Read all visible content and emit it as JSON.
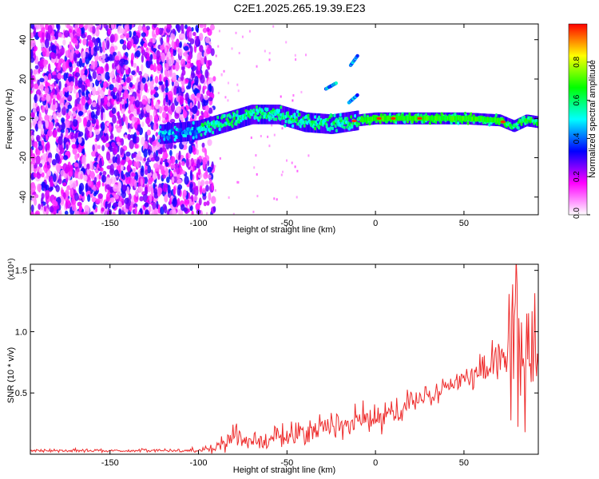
{
  "title": "C2E1.2025.265.19.39.E23",
  "chart_data": [
    {
      "type": "heatmap",
      "xlabel": "Height of straight line (km)",
      "ylabel": "Frequency (Hz)",
      "xlim": [
        -195,
        92
      ],
      "ylim": [
        -49,
        48
      ],
      "xticks": [
        -150,
        -100,
        -50,
        0,
        50
      ],
      "yticks": [
        -40,
        -20,
        0,
        20,
        40
      ],
      "colorbar": {
        "label": "Normalized spectral amplitude",
        "range": [
          0,
          1
        ],
        "ticks": [
          "0.0",
          "0.2",
          "0.4",
          "0.6",
          "0.8"
        ],
        "tick_values": [
          0.0,
          0.2,
          0.4,
          0.6,
          0.8
        ],
        "colors": [
          "#ffffff",
          "#ff00ff",
          "#0000ff",
          "#00ffff",
          "#00ff00",
          "#ffff00",
          "#ff0000"
        ]
      },
      "features": {
        "noise_region_x": [
          -195,
          -97
        ],
        "main_ridge": [
          [
            -120,
            -8
          ],
          [
            -100,
            -6
          ],
          [
            -85,
            -2
          ],
          [
            -70,
            2
          ],
          [
            -55,
            2
          ],
          [
            -40,
            -2
          ],
          [
            -25,
            -3
          ],
          [
            -10,
            -1
          ],
          [
            0,
            0
          ],
          [
            20,
            0
          ],
          [
            50,
            0
          ],
          [
            70,
            -1
          ],
          [
            78,
            -4
          ],
          [
            85,
            -1
          ],
          [
            92,
            -2
          ]
        ],
        "harmonic_traces": [
          {
            "points": [
              [
                -28,
                15
              ],
              [
                -22,
                18
              ]
            ]
          },
          {
            "points": [
              [
                -15,
                8
              ],
              [
                -10,
                12
              ]
            ]
          },
          {
            "points": [
              [
                -14,
                27
              ],
              [
                -10,
                32
              ]
            ]
          }
        ],
        "peaks_x": [
          -12,
          2,
          10,
          25,
          72
        ]
      }
    },
    {
      "type": "line",
      "xlabel": "Height of straight line (km)",
      "ylabel": "SNR (10 * v/v)",
      "y_multiplier": "(x10⁴)",
      "xlim": [
        -195,
        92
      ],
      "ylim": [
        0,
        1.55
      ],
      "xticks": [
        -150,
        -100,
        -50,
        0,
        50
      ],
      "yticks": [
        0.5,
        1.0,
        1.5
      ],
      "ytick_labels": [
        "0.5",
        "1.0",
        "1.5"
      ],
      "series": [
        {
          "name": "SNR",
          "color": "#ee2b2b",
          "x_step": 0.5,
          "envelope": [
            [
              -195,
              0.03
            ],
            [
              -100,
              0.03
            ],
            [
              -90,
              0.06
            ],
            [
              -80,
              0.15
            ],
            [
              -70,
              0.11
            ],
            [
              -60,
              0.12
            ],
            [
              -50,
              0.15
            ],
            [
              -40,
              0.18
            ],
            [
              -30,
              0.22
            ],
            [
              -20,
              0.24
            ],
            [
              -10,
              0.26
            ],
            [
              0,
              0.28
            ],
            [
              10,
              0.35
            ],
            [
              20,
              0.42
            ],
            [
              30,
              0.48
            ],
            [
              40,
              0.53
            ],
            [
              50,
              0.6
            ],
            [
              60,
              0.68
            ],
            [
              70,
              0.78
            ],
            [
              75,
              0.82
            ],
            [
              80,
              0.85
            ],
            [
              85,
              0.8
            ],
            [
              92,
              0.75
            ]
          ],
          "noise_amplitude": [
            [
              -195,
              0.01
            ],
            [
              -100,
              0.012
            ],
            [
              -90,
              0.04
            ],
            [
              -80,
              0.08
            ],
            [
              -60,
              0.07
            ],
            [
              -30,
              0.1
            ],
            [
              0,
              0.1
            ],
            [
              30,
              0.08
            ],
            [
              60,
              0.1
            ],
            [
              72,
              0.2
            ],
            [
              78,
              0.5
            ],
            [
              85,
              0.45
            ],
            [
              92,
              0.35
            ]
          ]
        }
      ]
    }
  ]
}
